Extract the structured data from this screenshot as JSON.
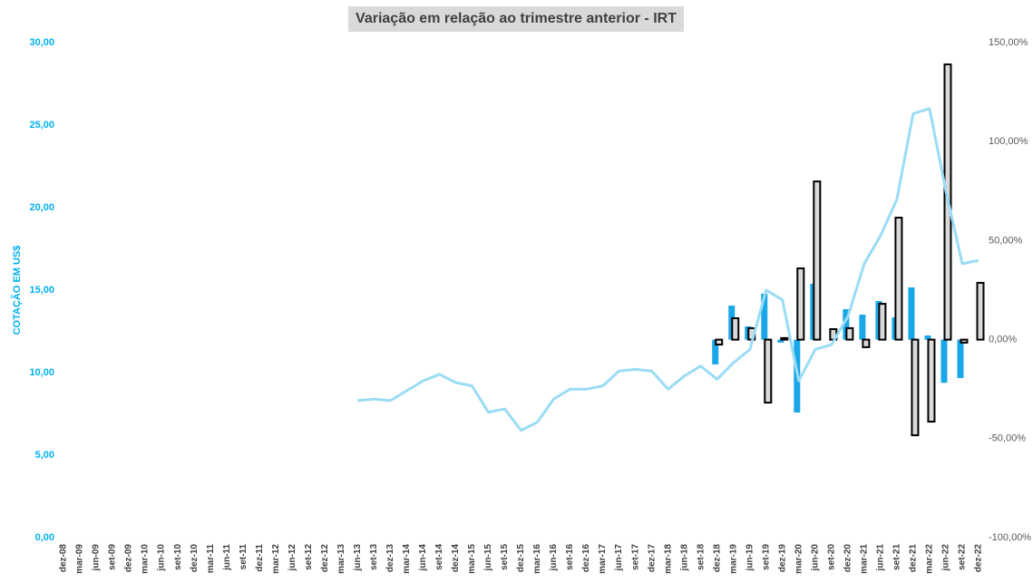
{
  "chart_data": {
    "type": "combo",
    "title": "Variação em relação ao trimestre anterior - IRT",
    "y_label": "COTAÇÃO EM US$",
    "categories": [
      "dez-08",
      "mar-09",
      "jun-09",
      "set-09",
      "dez-09",
      "mar-10",
      "jun-10",
      "set-10",
      "dez-10",
      "mar-11",
      "jun-11",
      "set-11",
      "dez-11",
      "mar-12",
      "jun-12",
      "set-12",
      "dez-12",
      "mar-13",
      "jun-13",
      "set-13",
      "dez-13",
      "mar-14",
      "jun-14",
      "set-14",
      "dez-14",
      "mar-15",
      "jun-15",
      "set-15",
      "dez-15",
      "mar-16",
      "jun-16",
      "set-16",
      "dez-16",
      "mar-17",
      "jun-17",
      "set-17",
      "dez-17",
      "mar-18",
      "jun-18",
      "set-18",
      "dez-18",
      "mar-19",
      "jun-19",
      "set-19",
      "dez-19",
      "mar-20",
      "jun-20",
      "set-20",
      "dez-20",
      "mar-21",
      "jun-21",
      "set-21",
      "dez-21",
      "mar-22",
      "jun-22",
      "set-22",
      "dez-22"
    ],
    "series": [
      {
        "type": "line",
        "color": "#9adcf5",
        "axis": "y",
        "values": [
          null,
          null,
          null,
          null,
          null,
          null,
          null,
          null,
          null,
          null,
          null,
          null,
          null,
          null,
          null,
          null,
          null,
          null,
          8.3,
          8.4,
          8.3,
          8.9,
          9.5,
          9.9,
          9.4,
          9.2,
          7.6,
          7.8,
          6.5,
          7.0,
          8.4,
          9.0,
          9.0,
          9.2,
          10.1,
          10.2,
          10.1,
          9.0,
          9.8,
          10.4,
          9.6,
          10.6,
          11.4,
          15.0,
          14.4,
          9.5,
          11.4,
          11.7,
          13.4,
          16.6,
          18.3,
          20.5,
          25.7,
          26.0,
          21.0,
          16.6,
          16.8
        ]
      },
      {
        "type": "bar",
        "color": "#1aa7e8",
        "axis": "y2",
        "values": [
          null,
          null,
          null,
          null,
          null,
          null,
          null,
          null,
          null,
          null,
          null,
          null,
          null,
          null,
          null,
          null,
          null,
          null,
          null,
          null,
          null,
          null,
          null,
          null,
          null,
          null,
          null,
          null,
          null,
          null,
          null,
          null,
          null,
          null,
          null,
          null,
          null,
          null,
          null,
          null,
          -12.5,
          17.2,
          6.7,
          23.2,
          -1.5,
          -36.8,
          28.2,
          null,
          15.4,
          12.6,
          19.5,
          11.3,
          26.4,
          2.1,
          -21.8,
          -19.4,
          null
        ]
      },
      {
        "type": "bar",
        "color": "#d9d9d9",
        "stroke": "#000000",
        "axis": "y2",
        "values": [
          null,
          null,
          null,
          null,
          null,
          null,
          null,
          null,
          null,
          null,
          null,
          null,
          null,
          null,
          null,
          null,
          null,
          null,
          null,
          null,
          null,
          null,
          null,
          null,
          null,
          null,
          null,
          null,
          null,
          null,
          null,
          null,
          null,
          null,
          null,
          null,
          null,
          null,
          null,
          null,
          -2.5,
          10.8,
          5.8,
          -31.8,
          0.8,
          36.0,
          79.9,
          5.3,
          5.8,
          -3.8,
          18.1,
          61.6,
          -48.3,
          -41.4,
          139.0,
          -1.5,
          28.7
        ]
      }
    ],
    "ylim": [
      0,
      30
    ],
    "yticks": [
      {
        "value": 0,
        "label": "0,00"
      },
      {
        "value": 5,
        "label": "5,00"
      },
      {
        "value": 10,
        "label": "10,00"
      },
      {
        "value": 15,
        "label": "15,00"
      },
      {
        "value": 20,
        "label": "20,00"
      },
      {
        "value": 25,
        "label": "25,00"
      },
      {
        "value": 30,
        "label": "30,00"
      }
    ],
    "y2lim": [
      -100,
      150
    ],
    "y2ticks": [
      {
        "value": -100,
        "label": "-100,00%"
      },
      {
        "value": -50,
        "label": "-50,00%"
      },
      {
        "value": 0,
        "label": "0,00%"
      },
      {
        "value": 50,
        "label": "50,00%"
      },
      {
        "value": 100,
        "label": "100,00%"
      },
      {
        "value": 150,
        "label": "150,00%"
      }
    ],
    "grid": false
  }
}
